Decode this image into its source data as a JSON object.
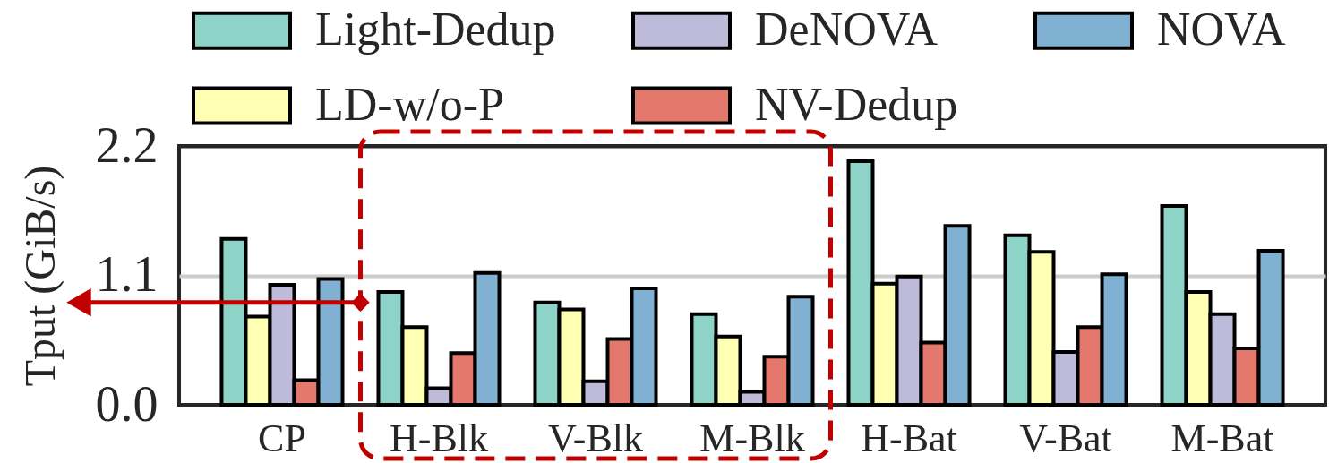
{
  "chart_data": {
    "type": "bar",
    "ylabel": "Tput (GiB/s)",
    "categories": [
      "CP",
      "H-Blk",
      "V-Blk",
      "M-Blk",
      "H-Bat",
      "V-Bat",
      "M-Bat"
    ],
    "series": [
      {
        "name": "Light-Dedup",
        "color": "#8dd3c7",
        "values": [
          1.41,
          0.96,
          0.87,
          0.77,
          2.07,
          1.44,
          1.69
        ]
      },
      {
        "name": "LD-w/o-P",
        "color": "#ffffb3",
        "values": [
          0.75,
          0.66,
          0.81,
          0.58,
          1.03,
          1.3,
          0.96
        ]
      },
      {
        "name": "DeNOVA",
        "color": "#bebada",
        "values": [
          1.02,
          0.14,
          0.2,
          0.11,
          1.09,
          0.45,
          0.77
        ]
      },
      {
        "name": "NV-Dedup",
        "color": "#e5786d",
        "values": [
          0.21,
          0.44,
          0.56,
          0.41,
          0.53,
          0.66,
          0.48
        ]
      },
      {
        "name": "NOVA",
        "color": "#80b1d3",
        "values": [
          1.07,
          1.12,
          0.99,
          0.92,
          1.52,
          1.11,
          1.31
        ]
      }
    ],
    "ylim": [
      0,
      2.2
    ],
    "yticks": [
      {
        "value": 0,
        "label": "0.0"
      },
      1.1,
      2.2
    ],
    "grid": "y",
    "legend": "top",
    "ref_lines": [
      {
        "axis": "y",
        "value": 0.87,
        "color": "#c00000"
      }
    ]
  }
}
